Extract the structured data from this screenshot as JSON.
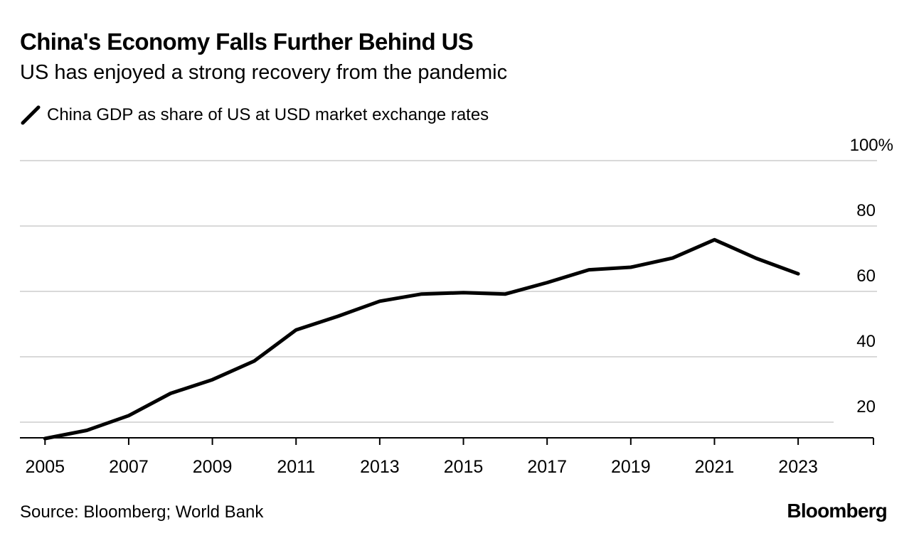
{
  "chart_data": {
    "type": "line",
    "title": "China's Economy Falls Further Behind US",
    "subtitle": "US has enjoyed a strong recovery from the pandemic",
    "series": [
      {
        "name": "China GDP as share of US at USD market exchange rates",
        "x": [
          2005,
          2006,
          2007,
          2008,
          2009,
          2010,
          2011,
          2012,
          2013,
          2014,
          2015,
          2016,
          2017,
          2018,
          2019,
          2020,
          2021,
          2022,
          2023
        ],
        "values": [
          15,
          17.5,
          22,
          28.8,
          33,
          38.7,
          48.2,
          52.4,
          57,
          59.2,
          59.6,
          59.2,
          62.7,
          66.6,
          67.4,
          70.2,
          75.8,
          70.1,
          65.4
        ]
      }
    ],
    "xlabel": "",
    "ylabel": "",
    "xlim": [
      2004.4,
      2024.8
    ],
    "ylim": [
      15,
      100
    ],
    "xticks": [
      "2005",
      "2007",
      "2009",
      "2011",
      "2013",
      "2015",
      "2017",
      "2019",
      "2021",
      "2023"
    ],
    "yticks": [
      "20",
      "40",
      "60",
      "80",
      "100%"
    ],
    "ytick_values": [
      20,
      40,
      60,
      80,
      100
    ],
    "grid": true,
    "legend": "top-left",
    "line_color": "#000000",
    "grid_color": "#d9d9d9"
  },
  "source": "Source: Bloomberg; World Bank",
  "logo": "Bloomberg"
}
